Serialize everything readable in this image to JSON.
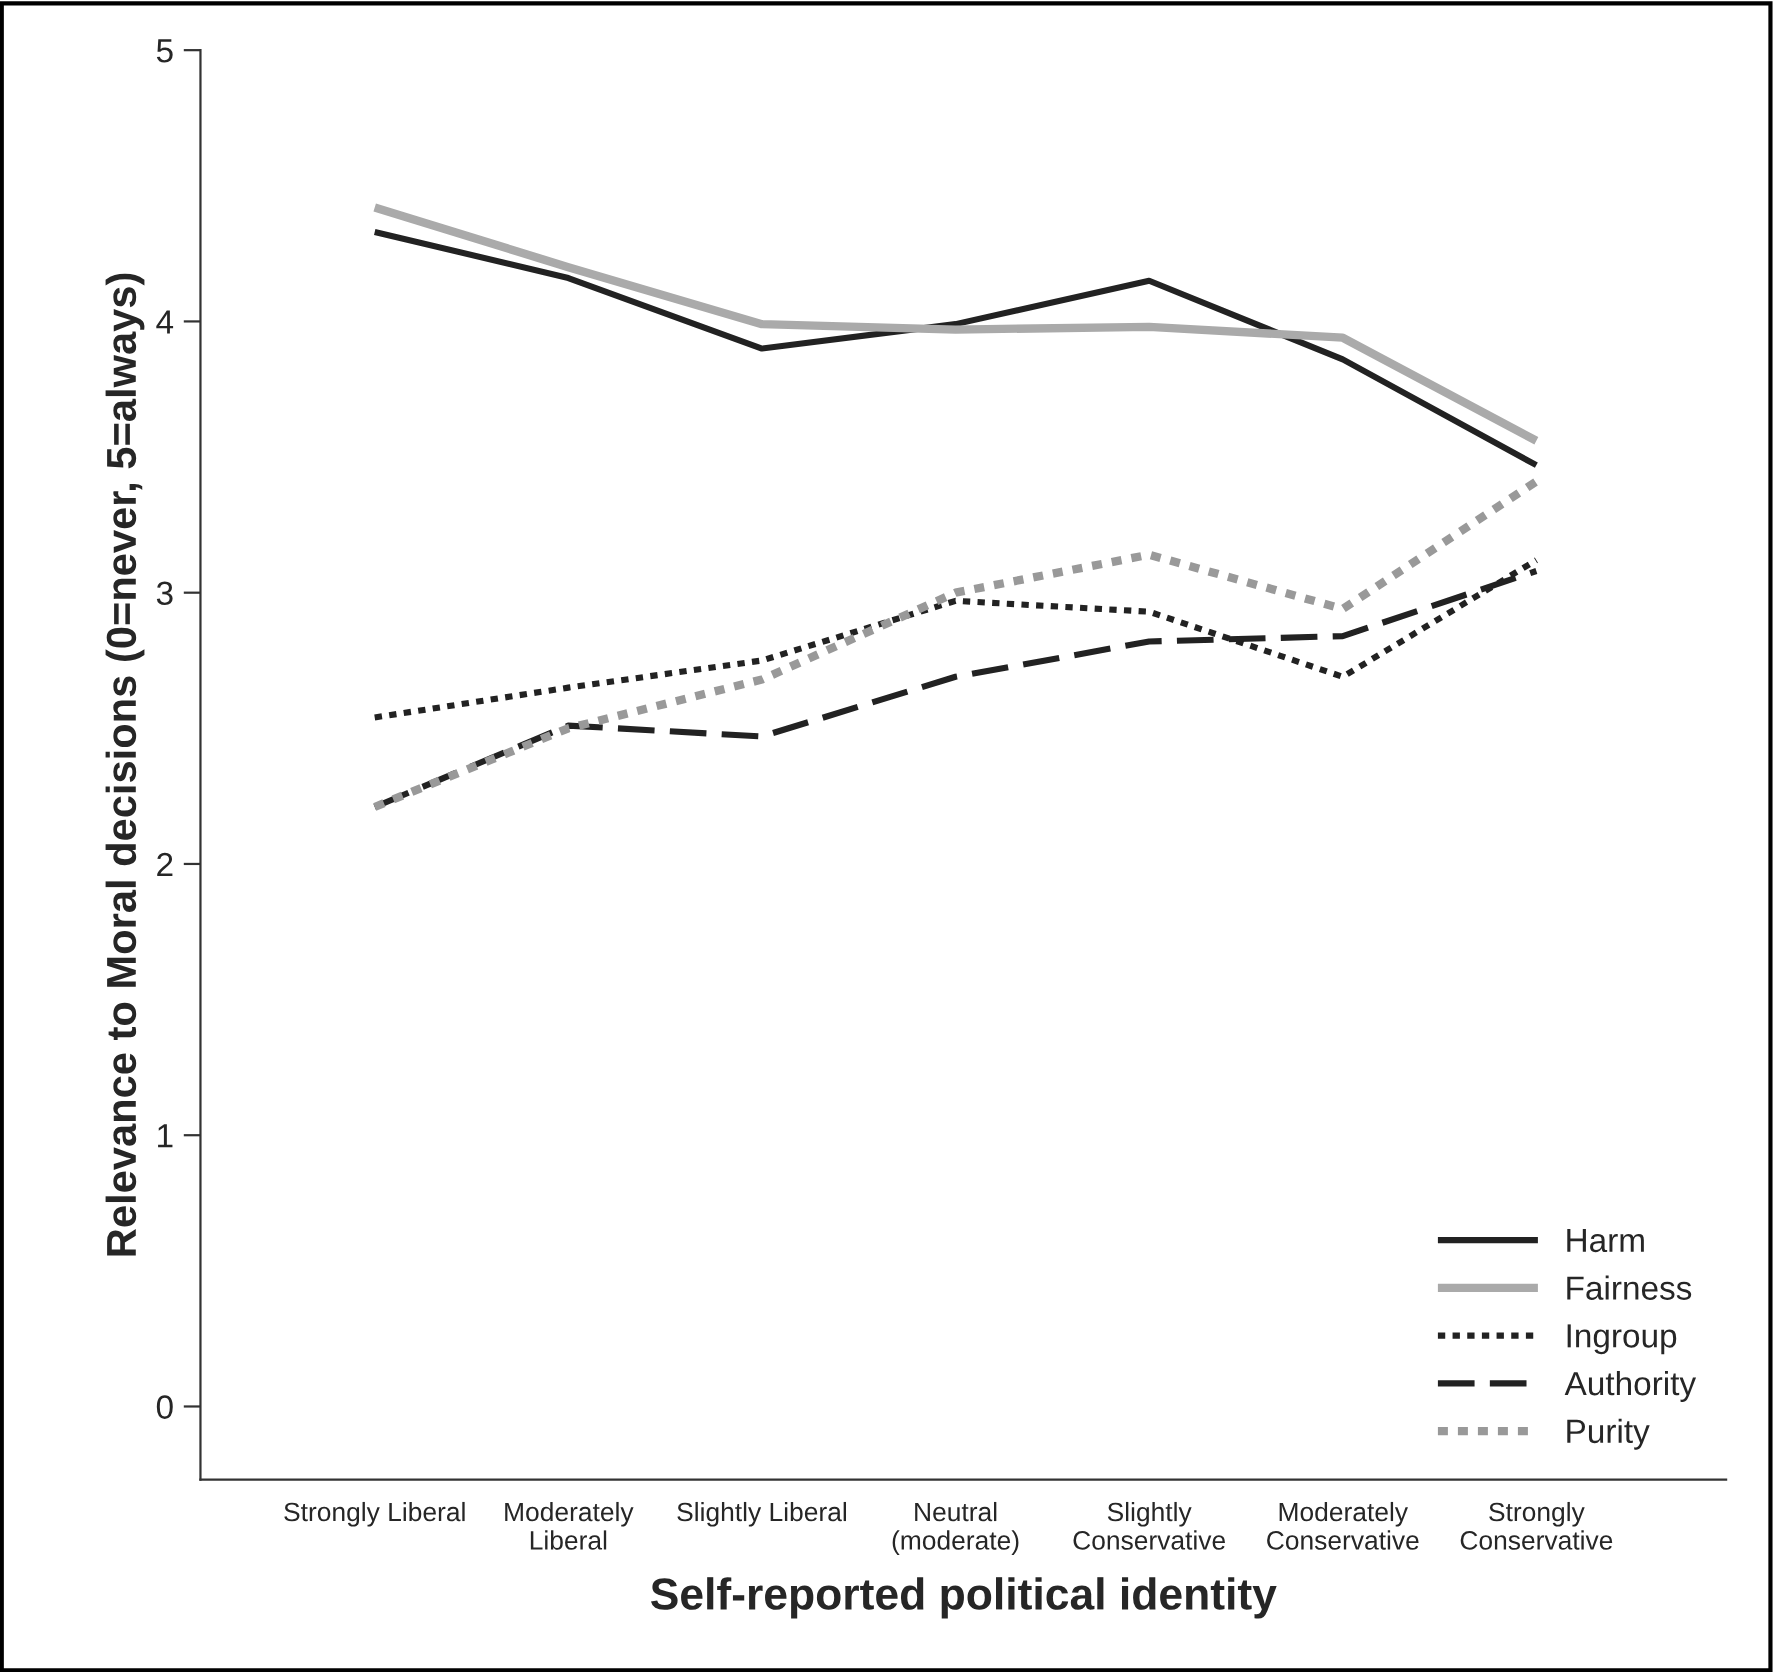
{
  "chart_data": {
    "type": "line",
    "xlabel": "Self-reported political identity",
    "ylabel": "Relevance to Moral decisions (0=never, 5=always)",
    "categories": [
      "Strongly Liberal",
      "Moderately\nLiberal",
      "Slightly Liberal",
      "Neutral\n(moderate)",
      "Slightly\nConservative",
      "Moderately\nConservative",
      "Strongly\nConservative"
    ],
    "series": [
      {
        "name": "Harm",
        "color": "#222222",
        "line_style": "solid",
        "values": [
          4.33,
          4.16,
          3.9,
          3.99,
          4.15,
          3.86,
          3.47
        ]
      },
      {
        "name": "Fairness",
        "color": "#aaaaaa",
        "line_style": "solid",
        "values": [
          4.42,
          4.2,
          3.99,
          3.97,
          3.98,
          3.94,
          3.56
        ]
      },
      {
        "name": "Ingroup",
        "color": "#222222",
        "line_style": "dotted",
        "values": [
          2.54,
          2.65,
          2.75,
          2.97,
          2.93,
          2.69,
          3.12
        ]
      },
      {
        "name": "Authority",
        "color": "#222222",
        "line_style": "dashed",
        "values": [
          2.21,
          2.51,
          2.47,
          2.69,
          2.82,
          2.84,
          3.08
        ]
      },
      {
        "name": "Purity",
        "color": "#999999",
        "line_style": "dotted",
        "values": [
          2.21,
          2.5,
          2.68,
          3.0,
          3.14,
          2.94,
          3.41
        ]
      }
    ],
    "ylim": [
      -0.27,
      5
    ],
    "yticks": [
      0,
      1,
      2,
      3,
      4,
      5
    ],
    "grid": false,
    "legend": "bottom right",
    "marker": "none"
  }
}
